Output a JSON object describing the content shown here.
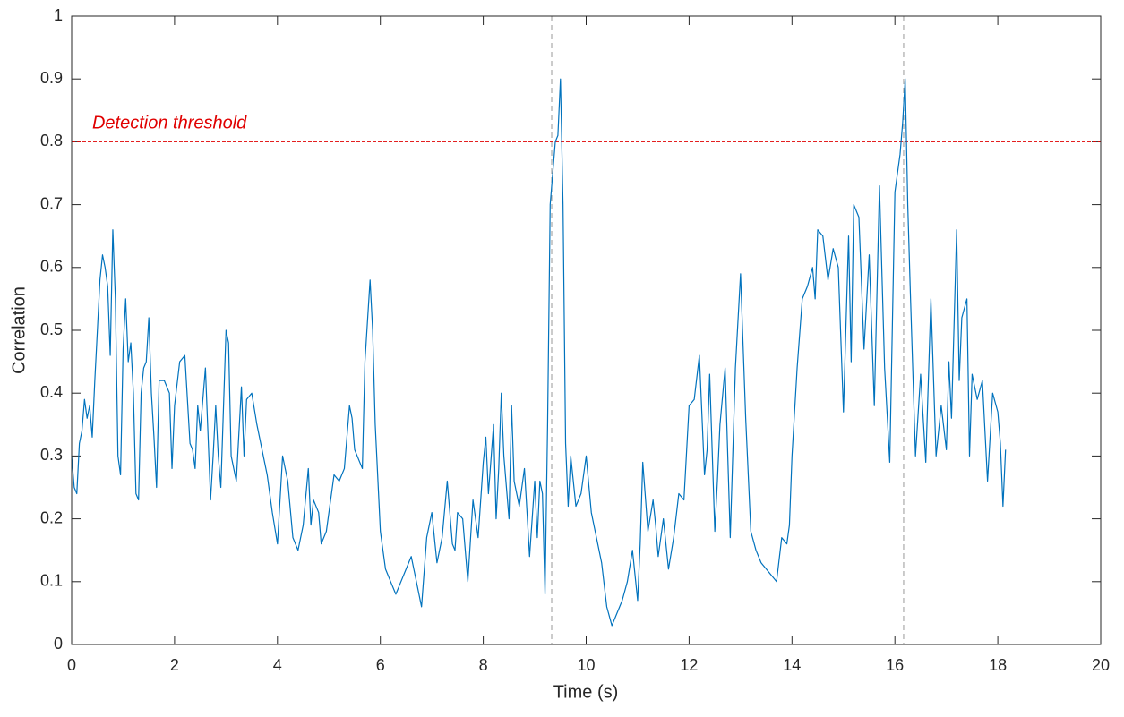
{
  "chart_data": {
    "type": "line",
    "x_label": "Time (s)",
    "y_label": "Correlation",
    "color": "#0072bd",
    "x": [
      0,
      0.05,
      0.1,
      0.15,
      0.2,
      0.25,
      0.3,
      0.35,
      0.4,
      0.45,
      0.5,
      0.55,
      0.6,
      0.65,
      0.7,
      0.75,
      0.8,
      0.85,
      0.9,
      0.95,
      1.0,
      1.05,
      1.1,
      1.15,
      1.2,
      1.25,
      1.3,
      1.35,
      1.4,
      1.45,
      1.5,
      1.55,
      1.6,
      1.65,
      1.7,
      1.8,
      1.9,
      1.95,
      2.0,
      2.1,
      2.2,
      2.3,
      2.35,
      2.4,
      2.45,
      2.5,
      2.6,
      2.7,
      2.75,
      2.8,
      2.85,
      2.9,
      3.0,
      3.05,
      3.1,
      3.2,
      3.3,
      3.35,
      3.4,
      3.5,
      3.6,
      3.7,
      3.8,
      3.9,
      4.0,
      4.1,
      4.2,
      4.3,
      4.4,
      4.5,
      4.6,
      4.65,
      4.7,
      4.8,
      4.85,
      4.95,
      5.0,
      5.1,
      5.2,
      5.3,
      5.4,
      5.45,
      5.5,
      5.6,
      5.65,
      5.7,
      5.8,
      5.85,
      5.9,
      6.0,
      6.1,
      6.2,
      6.3,
      6.4,
      6.5,
      6.6,
      6.7,
      6.8,
      6.9,
      7.0,
      7.1,
      7.2,
      7.3,
      7.4,
      7.45,
      7.5,
      7.6,
      7.7,
      7.8,
      7.9,
      8.0,
      8.05,
      8.1,
      8.2,
      8.25,
      8.3,
      8.35,
      8.4,
      8.5,
      8.55,
      8.6,
      8.7,
      8.8,
      8.9,
      9.0,
      9.05,
      9.1,
      9.15,
      9.2,
      9.25,
      9.3,
      9.35,
      9.4,
      9.45,
      9.5,
      9.55,
      9.6,
      9.65,
      9.7,
      9.8,
      9.9,
      10.0,
      10.1,
      10.2,
      10.3,
      10.4,
      10.5,
      10.6,
      10.7,
      10.8,
      10.9,
      11.0,
      11.05,
      11.1,
      11.2,
      11.3,
      11.35,
      11.4,
      11.5,
      11.6,
      11.7,
      11.8,
      11.9,
      12.0,
      12.1,
      12.2,
      12.3,
      12.35,
      12.4,
      12.5,
      12.55,
      12.6,
      12.7,
      12.8,
      12.9,
      13.0,
      13.1,
      13.2,
      13.3,
      13.4,
      13.5,
      13.6,
      13.7,
      13.8,
      13.9,
      13.95,
      14.0,
      14.1,
      14.2,
      14.3,
      14.4,
      14.45,
      14.5,
      14.6,
      14.7,
      14.8,
      14.9,
      15.0,
      15.1,
      15.15,
      15.2,
      15.3,
      15.4,
      15.5,
      15.6,
      15.7,
      15.8,
      15.9,
      16.0,
      16.05,
      16.1,
      16.15,
      16.2,
      16.25,
      16.3,
      16.4,
      16.5,
      16.6,
      16.7,
      16.8,
      16.9,
      17.0,
      17.05,
      17.1,
      17.2,
      17.25,
      17.3,
      17.4,
      17.45,
      17.5,
      17.6,
      17.7,
      17.8,
      17.9,
      18.0,
      18.05,
      18.1,
      18.15
    ],
    "values": [
      0.3,
      0.25,
      0.24,
      0.32,
      0.34,
      0.39,
      0.36,
      0.38,
      0.33,
      0.42,
      0.5,
      0.58,
      0.62,
      0.6,
      0.57,
      0.46,
      0.66,
      0.55,
      0.3,
      0.27,
      0.47,
      0.55,
      0.45,
      0.48,
      0.4,
      0.24,
      0.23,
      0.4,
      0.44,
      0.45,
      0.52,
      0.4,
      0.33,
      0.25,
      0.42,
      0.42,
      0.4,
      0.28,
      0.38,
      0.45,
      0.46,
      0.32,
      0.31,
      0.28,
      0.38,
      0.34,
      0.44,
      0.23,
      0.3,
      0.38,
      0.3,
      0.25,
      0.5,
      0.48,
      0.3,
      0.26,
      0.41,
      0.3,
      0.39,
      0.4,
      0.35,
      0.31,
      0.27,
      0.21,
      0.16,
      0.3,
      0.26,
      0.17,
      0.15,
      0.19,
      0.28,
      0.19,
      0.23,
      0.21,
      0.16,
      0.18,
      0.21,
      0.27,
      0.26,
      0.28,
      0.38,
      0.36,
      0.31,
      0.29,
      0.28,
      0.45,
      0.58,
      0.5,
      0.35,
      0.18,
      0.12,
      0.1,
      0.08,
      0.1,
      0.12,
      0.14,
      0.1,
      0.06,
      0.17,
      0.21,
      0.13,
      0.17,
      0.26,
      0.16,
      0.15,
      0.21,
      0.2,
      0.1,
      0.23,
      0.17,
      0.29,
      0.33,
      0.24,
      0.35,
      0.2,
      0.28,
      0.4,
      0.3,
      0.2,
      0.38,
      0.26,
      0.22,
      0.28,
      0.14,
      0.26,
      0.17,
      0.26,
      0.24,
      0.08,
      0.35,
      0.7,
      0.75,
      0.8,
      0.81,
      0.9,
      0.7,
      0.32,
      0.22,
      0.3,
      0.22,
      0.24,
      0.3,
      0.21,
      0.17,
      0.13,
      0.06,
      0.03,
      0.05,
      0.07,
      0.1,
      0.15,
      0.07,
      0.16,
      0.29,
      0.18,
      0.23,
      0.19,
      0.14,
      0.2,
      0.12,
      0.17,
      0.24,
      0.23,
      0.38,
      0.39,
      0.46,
      0.27,
      0.31,
      0.43,
      0.18,
      0.26,
      0.35,
      0.44,
      0.17,
      0.44,
      0.59,
      0.36,
      0.18,
      0.15,
      0.13,
      0.12,
      0.11,
      0.1,
      0.17,
      0.16,
      0.19,
      0.3,
      0.44,
      0.55,
      0.57,
      0.6,
      0.55,
      0.66,
      0.65,
      0.58,
      0.63,
      0.6,
      0.37,
      0.65,
      0.45,
      0.7,
      0.68,
      0.47,
      0.62,
      0.38,
      0.73,
      0.44,
      0.29,
      0.72,
      0.75,
      0.78,
      0.83,
      0.9,
      0.7,
      0.56,
      0.3,
      0.43,
      0.29,
      0.55,
      0.3,
      0.38,
      0.31,
      0.45,
      0.36,
      0.66,
      0.42,
      0.52,
      0.55,
      0.3,
      0.43,
      0.39,
      0.42,
      0.26,
      0.4,
      0.37,
      0.32,
      0.22,
      0.31
    ],
    "threshold": {
      "value": 0.8,
      "label": "Detection threshold",
      "color": "#e00000"
    },
    "vlines": [
      9.33,
      16.17
    ],
    "xlim": [
      0,
      20
    ],
    "xticks": [
      0,
      2,
      4,
      6,
      8,
      10,
      12,
      14,
      16,
      18,
      20
    ],
    "ylim": [
      0,
      1
    ],
    "yticks": [
      0,
      0.1,
      0.2,
      0.3,
      0.4,
      0.5,
      0.6,
      0.7,
      0.8,
      0.9,
      1
    ],
    "grid": false
  }
}
